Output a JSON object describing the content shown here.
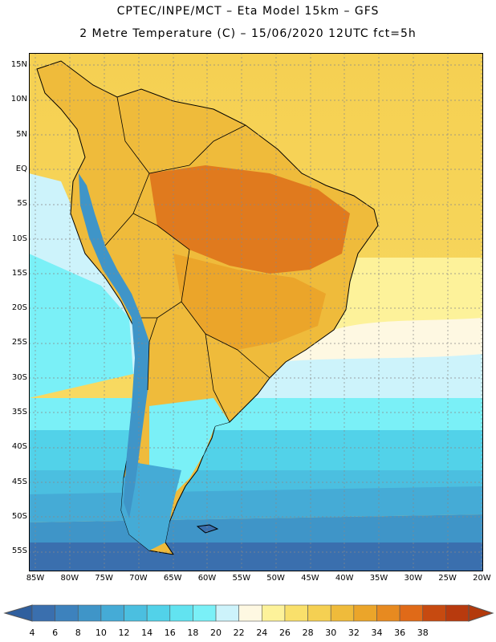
{
  "title_line1": "CPTEC/INPE/MCT –  Eta Model 15km – GFS",
  "title_line2": "2 Metre Temperature (C) – 15/06/2020 12UTC fct=5h",
  "lat_labels": [
    "15N",
    "10N",
    "5N",
    "EQ",
    "5S",
    "10S",
    "15S",
    "20S",
    "25S",
    "30S",
    "35S",
    "40S",
    "45S",
    "50S",
    "55S"
  ],
  "lon_labels": [
    "85W",
    "80W",
    "75W",
    "70W",
    "65W",
    "60W",
    "55W",
    "50W",
    "45W",
    "40W",
    "35W",
    "30W",
    "25W",
    "20W"
  ],
  "colorbar": {
    "labels": [
      "4",
      "6",
      "8",
      "10",
      "12",
      "14",
      "16",
      "18",
      "20",
      "22",
      "24",
      "26",
      "28",
      "30",
      "32",
      "34",
      "36",
      "38"
    ],
    "colors": [
      "#3a6fae",
      "#3d82bd",
      "#3f95c8",
      "#45abd6",
      "#4bbfe0",
      "#52d2e9",
      "#62e3f0",
      "#7af0f7",
      "#cdf3fb",
      "#fef8e2",
      "#fdf29a",
      "#f9e06b",
      "#f5d052",
      "#efbb3b",
      "#eba52a",
      "#e78a20",
      "#e06a18",
      "#c74a10",
      "#b83a0e"
    ],
    "under_color": "#2f5f9e",
    "over_color": "#b33a0c"
  }
}
